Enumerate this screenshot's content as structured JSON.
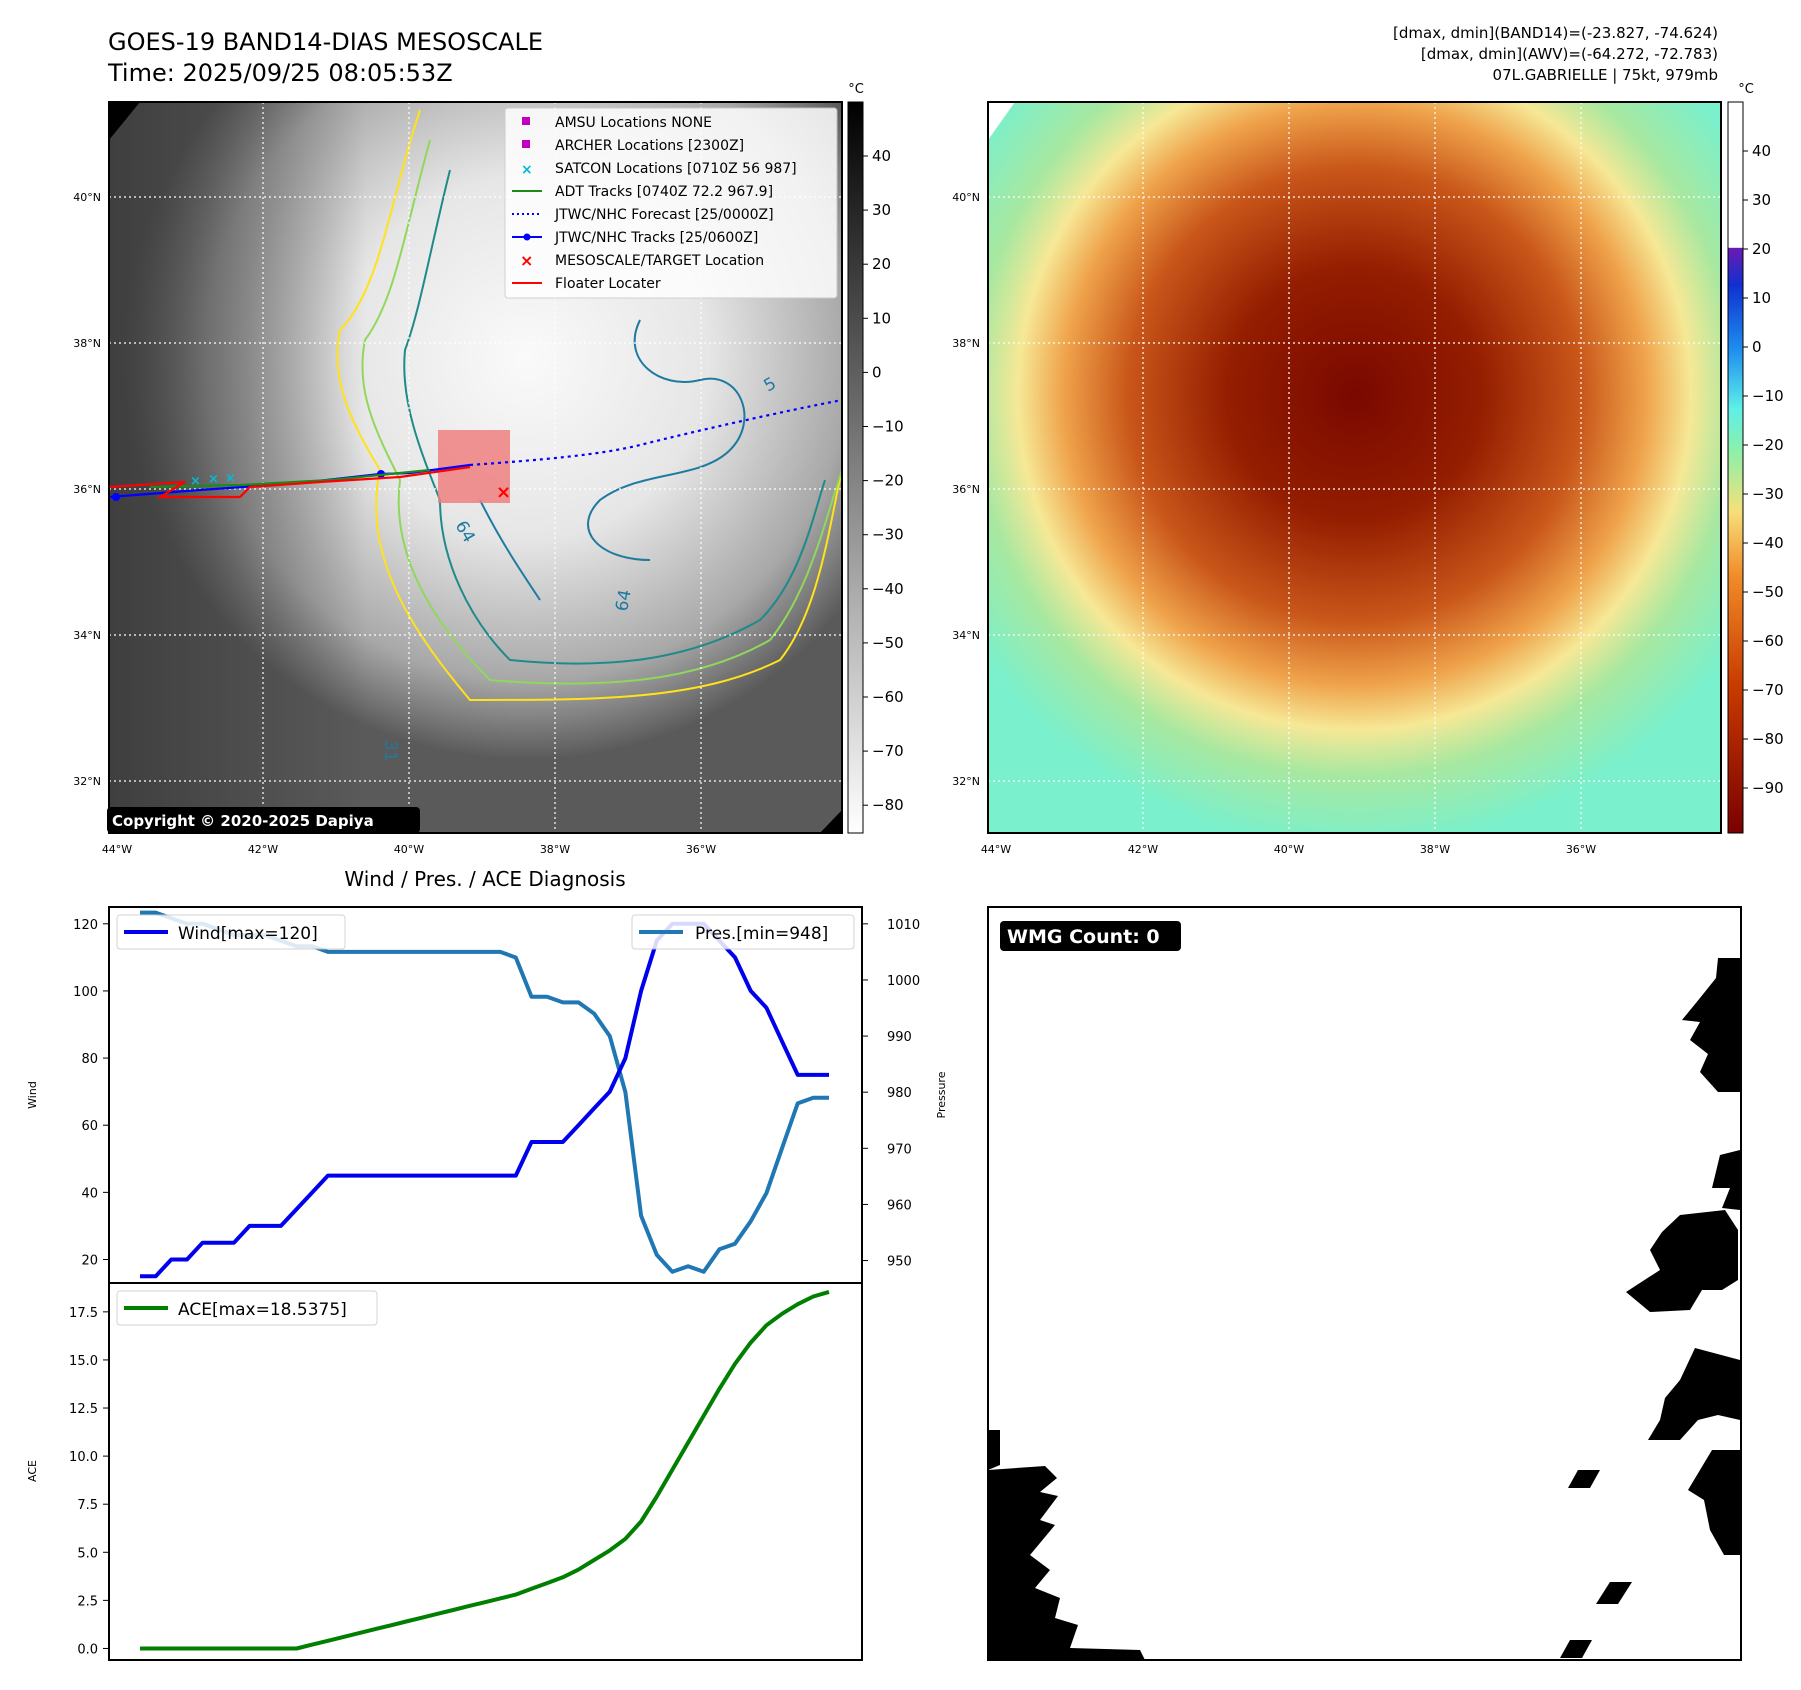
{
  "header": {
    "title": "GOES-19 BAND14-DIAS MESOSCALE",
    "time": "Time: 2025/09/25 08:05:53Z",
    "info_line1": "[dmax, dmin](BAND14)=(-23.827, -74.624)",
    "info_line2": "[dmax, dmin](AWV)=(-64.272, -72.783)",
    "info_line3": "07L.GABRIELLE | 75kt, 979mb"
  },
  "copyright": "Copyright © 2020-2025 Dapiya",
  "map": {
    "lat_labels": [
      "40°N",
      "38°N",
      "36°N",
      "34°N",
      "32°N"
    ],
    "lon_labels": [
      "44°W",
      "42°W",
      "40°W",
      "38°W",
      "36°W"
    ],
    "contour_labels": [
      "64",
      "64",
      "31",
      "5"
    ],
    "legend": [
      {
        "label": "AMSU Locations NONE",
        "color": "#c000c0"
      },
      {
        "label": "ARCHER Locations [2300Z]",
        "color": "#c000c0"
      },
      {
        "label": "SATCON Locations [0710Z 56 987]",
        "color": "#00bcd4"
      },
      {
        "label": "ADT Tracks [0740Z 72.2 967.9]",
        "color": "#1a8a1a"
      },
      {
        "label": "JTWC/NHC Forecast [25/0000Z]",
        "color": "#0000ff"
      },
      {
        "label": "JTWC/NHC Tracks [25/0600Z]",
        "color": "#0000ff"
      },
      {
        "label": "MESOSCALE/TARGET Location",
        "color": "#ff0000"
      },
      {
        "label": "Floater Locater",
        "color": "#ff0000"
      }
    ]
  },
  "colorbar_left": {
    "unit": "°C",
    "ticks": [
      "40",
      "30",
      "20",
      "10",
      "0",
      "−10",
      "−20",
      "−30",
      "−40",
      "−50",
      "−60",
      "−70",
      "−80"
    ]
  },
  "colorbar_right": {
    "unit": "°C",
    "ticks": [
      "40",
      "30",
      "20",
      "10",
      "0",
      "−10",
      "−20",
      "−30",
      "−40",
      "−50",
      "−60",
      "−70",
      "−80",
      "−90"
    ]
  },
  "diagnosis": {
    "title": "Wind / Pres. / ACE Diagnosis",
    "wind_legend": "Wind[max=120]",
    "pres_legend": "Pres.[min=948]",
    "ace_legend": "ACE[max=18.5375]",
    "wind_axis_label": "Wind",
    "pres_axis_label": "Pressure",
    "ace_axis_label": "ACE"
  },
  "wmg": {
    "label": "WMG Count: 0"
  },
  "colors": {
    "wind": "#0000ee",
    "pressure": "#1f77b4",
    "ace": "#007f00"
  },
  "chart_data": [
    {
      "type": "line",
      "title": "Wind / Pres. / ACE Diagnosis",
      "ylabel": "Wind",
      "ylim": [
        13,
        125
      ],
      "yticks": [
        20,
        40,
        60,
        80,
        100,
        120
      ],
      "series": [
        {
          "name": "Wind[max=120]",
          "x": [
            0,
            1,
            2,
            3,
            4,
            5,
            6,
            7,
            8,
            9,
            10,
            11,
            12,
            13,
            14,
            15,
            16,
            17,
            18,
            19,
            20,
            21,
            22,
            23,
            24,
            25,
            26,
            27,
            28,
            29,
            30,
            31,
            32,
            33,
            34,
            35,
            36,
            37,
            38,
            39,
            40,
            41,
            42,
            43,
            44
          ],
          "values": [
            15,
            15,
            20,
            20,
            25,
            25,
            25,
            30,
            30,
            30,
            35,
            40,
            45,
            45,
            45,
            45,
            45,
            45,
            45,
            45,
            45,
            45,
            45,
            45,
            45,
            55,
            55,
            55,
            60,
            65,
            70,
            80,
            100,
            115,
            120,
            120,
            120,
            115,
            110,
            100,
            95,
            85,
            75,
            75,
            75
          ]
        }
      ]
    },
    {
      "type": "line",
      "ylabel": "Pressure",
      "ylim": [
        946,
        1013
      ],
      "yticks": [
        950,
        960,
        970,
        980,
        990,
        1000,
        1010
      ],
      "series": [
        {
          "name": "Pres.[min=948]",
          "x": [
            0,
            1,
            2,
            3,
            4,
            5,
            6,
            7,
            8,
            9,
            10,
            11,
            12,
            13,
            14,
            15,
            16,
            17,
            18,
            19,
            20,
            21,
            22,
            23,
            24,
            25,
            26,
            27,
            28,
            29,
            30,
            31,
            32,
            33,
            34,
            35,
            36,
            37,
            38,
            39,
            40,
            41,
            42,
            43,
            44
          ],
          "values": [
            1012,
            1012,
            1011,
            1010,
            1010,
            1009,
            1008,
            1008,
            1008,
            1007,
            1006,
            1006,
            1005,
            1005,
            1005,
            1005,
            1005,
            1005,
            1005,
            1005,
            1005,
            1005,
            1005,
            1005,
            1004,
            997,
            997,
            996,
            996,
            994,
            990,
            980,
            958,
            951,
            948,
            949,
            948,
            952,
            953,
            957,
            962,
            970,
            978,
            979,
            979
          ]
        }
      ]
    },
    {
      "type": "line",
      "ylabel": "ACE",
      "ylim": [
        -0.6,
        19.0
      ],
      "yticks": [
        0.0,
        2.5,
        5.0,
        7.5,
        10.0,
        12.5,
        15.0,
        17.5
      ],
      "series": [
        {
          "name": "ACE[max=18.5375]",
          "x": [
            0,
            1,
            2,
            3,
            4,
            5,
            6,
            7,
            8,
            9,
            10,
            11,
            12,
            13,
            14,
            15,
            16,
            17,
            18,
            19,
            20,
            21,
            22,
            23,
            24,
            25,
            26,
            27,
            28,
            29,
            30,
            31,
            32,
            33,
            34,
            35,
            36,
            37,
            38,
            39,
            40,
            41,
            42,
            43,
            44
          ],
          "values": [
            0,
            0,
            0,
            0,
            0,
            0,
            0,
            0,
            0,
            0,
            0,
            0.2,
            0.4,
            0.6,
            0.8,
            1.0,
            1.2,
            1.4,
            1.6,
            1.8,
            2.0,
            2.2,
            2.4,
            2.6,
            2.8,
            3.1,
            3.4,
            3.7,
            4.1,
            4.6,
            5.1,
            5.7,
            6.6,
            7.9,
            9.3,
            10.7,
            12.1,
            13.5,
            14.8,
            15.9,
            16.8,
            17.4,
            17.9,
            18.3,
            18.5375
          ]
        }
      ]
    }
  ]
}
